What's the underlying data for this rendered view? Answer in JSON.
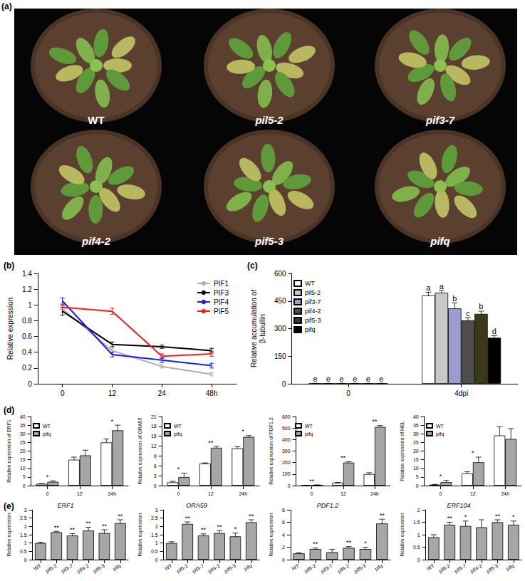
{
  "photo": {
    "panel": "(a)",
    "plants": [
      "WT",
      "pil5-2",
      "pif3-7",
      "pif4-2",
      "pif5-3",
      "pifq"
    ]
  },
  "chart_data": [
    {
      "type": "line",
      "panel": "(b)",
      "ylabel": "Relative expression",
      "categories": [
        "0",
        "12",
        "24",
        "48h"
      ],
      "ylim": [
        0,
        1.4
      ],
      "yticks": [
        0,
        0.2,
        0.4,
        0.6,
        0.8,
        1,
        1.2,
        1.4
      ],
      "legend": "top-right",
      "grid": false,
      "series": [
        {
          "name": "PIF1",
          "color": "#b0b0b0",
          "values": [
            0.95,
            0.42,
            0.22,
            0.12
          ],
          "errors": [
            0.04,
            0.03,
            0.02,
            0.02
          ]
        },
        {
          "name": "PIF3",
          "color": "#000000",
          "values": [
            0.92,
            0.5,
            0.47,
            0.42
          ],
          "errors": [
            0.05,
            0.03,
            0.02,
            0.03
          ]
        },
        {
          "name": "PIF4",
          "color": "#1a1aff",
          "values": [
            1.05,
            0.37,
            0.3,
            0.23
          ],
          "errors": [
            0.04,
            0.03,
            0.03,
            0.03
          ]
        },
        {
          "name": "PIF5",
          "color": "#ff1a1a",
          "values": [
            0.97,
            0.92,
            0.35,
            0.38
          ],
          "errors": [
            0.03,
            0.04,
            0.03,
            0.03
          ]
        }
      ]
    },
    {
      "type": "bar",
      "panel": "(c)",
      "ylabel": "Relative accumulation of\nβ-tubullin",
      "categories": [
        "0",
        "4dpi"
      ],
      "ylim": [
        0,
        600
      ],
      "yticks": [
        0,
        150,
        300,
        450,
        600
      ],
      "legend": "top-left",
      "grid": false,
      "series": [
        {
          "name": "WT",
          "color": "#ffffff",
          "values": [
            2,
            480
          ],
          "errors": [
            0.5,
            18
          ],
          "significance": [
            "e",
            "a"
          ]
        },
        {
          "name": "pil5-2",
          "color": "#c8c8c8",
          "values": [
            2,
            495
          ],
          "errors": [
            0.5,
            12
          ],
          "significance": [
            "e",
            "a"
          ]
        },
        {
          "name": "pif3-7",
          "color": "#9c9ccc",
          "values": [
            2,
            410
          ],
          "errors": [
            0.5,
            30
          ],
          "significance": [
            "e",
            "b"
          ]
        },
        {
          "name": "pif4-2",
          "color": "#4d4d4d",
          "values": [
            2,
            345
          ],
          "errors": [
            0.5,
            15
          ],
          "significance": [
            "e",
            "c"
          ]
        },
        {
          "name": "pif5-3",
          "color": "#3a3a1a",
          "values": [
            2,
            380
          ],
          "errors": [
            0.5,
            15
          ],
          "significance": [
            "e",
            "b"
          ]
        },
        {
          "name": "pifq",
          "color": "#000000",
          "values": [
            2,
            250
          ],
          "errors": [
            0.5,
            12
          ],
          "significance": [
            "e",
            "d"
          ]
        }
      ]
    },
    {
      "type": "bar",
      "panel": "(d)",
      "ylabel": "Relative expression of ERF1",
      "categories": [
        "0",
        "12",
        "24h"
      ],
      "ylim": [
        0,
        40
      ],
      "yticks": [
        0,
        5,
        10,
        15,
        20,
        25,
        30,
        35,
        40
      ],
      "legend": "top-left",
      "grid": false,
      "significance": [
        "*",
        null,
        "*"
      ],
      "series": [
        {
          "name": "WT",
          "color": "#ffffff",
          "values": [
            1,
            15,
            25
          ],
          "errors": [
            0.2,
            1.5,
            2
          ]
        },
        {
          "name": "pifq",
          "color": "#a6a6a6",
          "values": [
            2.2,
            17.5,
            32
          ],
          "errors": [
            0.5,
            3,
            3
          ]
        }
      ]
    },
    {
      "type": "bar",
      "ylabel": "Relative expression of ORA59",
      "categories": [
        "0",
        "12",
        "24h"
      ],
      "ylim": [
        0,
        21
      ],
      "yticks": [
        0,
        3,
        6,
        9,
        12,
        15,
        18,
        21
      ],
      "legend": "top-left",
      "grid": false,
      "significance": [
        "*",
        "**",
        "*"
      ],
      "series": [
        {
          "name": "WT",
          "color": "#ffffff",
          "values": [
            1,
            6.7,
            11.3
          ],
          "errors": [
            0.3,
            0.2,
            0.5
          ]
        },
        {
          "name": "pifq",
          "color": "#a6a6a6",
          "values": [
            2.6,
            11.5,
            14.8
          ],
          "errors": [
            1.2,
            0.4,
            0.4
          ]
        }
      ]
    },
    {
      "type": "bar",
      "ylabel": "Relative expression of PDF1.2",
      "categories": [
        "0",
        "12",
        "24h"
      ],
      "ylim": [
        0,
        600
      ],
      "yticks": [
        0,
        100,
        200,
        300,
        400,
        500,
        600
      ],
      "legend": "top-left",
      "grid": false,
      "significance": [
        "**",
        "**",
        "**"
      ],
      "series": [
        {
          "name": "WT",
          "color": "#ffffff",
          "values": [
            1,
            25,
            100
          ],
          "errors": [
            0.5,
            3,
            12
          ]
        },
        {
          "name": "pifq",
          "color": "#a6a6a6",
          "values": [
            5,
            200,
            510
          ],
          "errors": [
            1,
            8,
            12
          ]
        }
      ]
    },
    {
      "type": "bar",
      "ylabel": "Relative expression of HEL",
      "categories": [
        "0",
        "12",
        "24h"
      ],
      "ylim": [
        0,
        40
      ],
      "yticks": [
        0,
        5,
        10,
        15,
        20,
        25,
        30,
        35,
        40
      ],
      "legend": "top-left",
      "grid": false,
      "significance": [
        "*",
        "*",
        null
      ],
      "series": [
        {
          "name": "WT",
          "color": "#ffffff",
          "values": [
            0.5,
            7,
            29
          ],
          "errors": [
            0.2,
            1,
            5
          ]
        },
        {
          "name": "pifq",
          "color": "#a6a6a6",
          "values": [
            2,
            13.5,
            27
          ],
          "errors": [
            1,
            3,
            6
          ]
        }
      ]
    },
    {
      "type": "bar",
      "panel": "(e)",
      "title": "ERF1",
      "ylabel": "Relative expression",
      "categories": [
        "WT",
        "pil5-2",
        "pif3-7",
        "pif4-2",
        "pif5-3",
        "pifq"
      ],
      "ylim": [
        0,
        3
      ],
      "yticks": [
        0,
        0.5,
        1,
        1.5,
        2,
        2.5,
        3
      ],
      "grid": false,
      "series": [
        {
          "color": "#a6a6a6",
          "values": [
            1,
            1.65,
            1.45,
            1.75,
            1.6,
            2.2
          ],
          "errors": [
            0.05,
            0.05,
            0.12,
            0.2,
            0.2,
            0.2
          ],
          "significance": [
            null,
            "**",
            "**",
            "**",
            "**",
            "**"
          ]
        }
      ]
    },
    {
      "type": "bar",
      "title": "ORA59",
      "ylabel": "Relative expression",
      "categories": [
        "WT",
        "pil5-2",
        "pif3-7",
        "pif4-2",
        "pif5-3",
        "pifq"
      ],
      "ylim": [
        0,
        3
      ],
      "yticks": [
        0,
        0.5,
        1,
        1.5,
        2,
        2.5,
        3
      ],
      "grid": false,
      "series": [
        {
          "color": "#a6a6a6",
          "values": [
            1,
            2.15,
            1.45,
            1.6,
            1.4,
            2.25
          ],
          "errors": [
            0.08,
            0.12,
            0.1,
            0.15,
            0.2,
            0.15
          ],
          "significance": [
            null,
            "**",
            "**",
            "**",
            "*",
            "**"
          ]
        }
      ]
    },
    {
      "type": "bar",
      "title": "PDF1.2",
      "ylabel": "Relative expression",
      "categories": [
        "WT",
        "pil5-2",
        "pif3-7",
        "pif4-2",
        "pif5-3",
        "pifq"
      ],
      "ylim": [
        0,
        8
      ],
      "yticks": [
        0,
        2,
        4,
        6,
        8
      ],
      "grid": false,
      "series": [
        {
          "color": "#a6a6a6",
          "values": [
            1,
            1.7,
            1.2,
            1.9,
            1.7,
            5.8
          ],
          "errors": [
            0.1,
            0.15,
            0.45,
            0.2,
            0.3,
            0.7
          ],
          "significance": [
            null,
            "**",
            null,
            "**",
            "*",
            "**"
          ]
        }
      ]
    },
    {
      "type": "bar",
      "title": "ERF104",
      "ylabel": "Relative expression",
      "categories": [
        "WT",
        "pil5-2",
        "pif3-7",
        "pif4-2",
        "pif5-3",
        "pifq"
      ],
      "ylim": [
        0,
        2
      ],
      "yticks": [
        0,
        0.5,
        1,
        1.5,
        2
      ],
      "grid": false,
      "series": [
        {
          "color": "#a6a6a6",
          "values": [
            0.9,
            1.4,
            1.35,
            1.3,
            1.5,
            1.4
          ],
          "errors": [
            0.1,
            0.1,
            0.2,
            0.3,
            0.1,
            0.15
          ],
          "significance": [
            null,
            "**",
            "*",
            null,
            "**",
            "*"
          ]
        }
      ]
    }
  ]
}
